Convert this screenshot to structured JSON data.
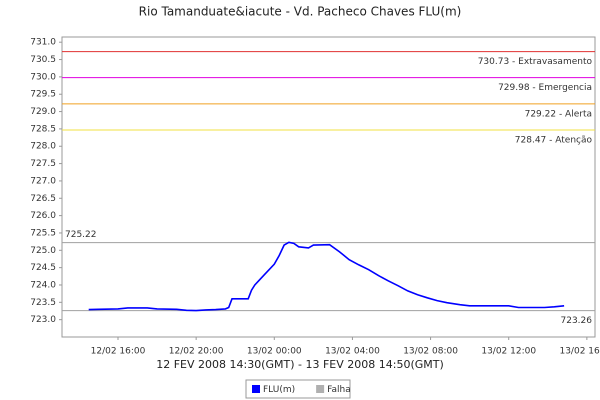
{
  "chart_data": {
    "type": "line",
    "title": "Rio Tamanduate&iacute - Vd. Pacheco Chaves FLU(m)",
    "xlabel": "12 FEV 2008 14:30(GMT) - 13 FEV 2008 14:50(GMT)",
    "x": [
      "12/02 14:30",
      "12/02 15:00",
      "12/02 16:00",
      "12/02 16:30",
      "12/02 17:30",
      "12/02 18:00",
      "12/02 19:00",
      "12/02 19:30",
      "12/02 20:00",
      "12/02 20:30",
      "12/02 21:00",
      "12/02 21:30",
      "12/02 21:40",
      "12/02 21:50",
      "12/02 22:40",
      "12/02 22:50",
      "12/02 23:00",
      "12/02 23:15",
      "12/02 23:30",
      "13/02 00:00",
      "13/02 00:15",
      "13/02 00:30",
      "13/02 00:45",
      "13/02 01:00",
      "13/02 01:15",
      "13/02 01:45",
      "13/02 02:00",
      "13/02 02:50",
      "13/02 03:20",
      "13/02 03:50",
      "13/02 04:20",
      "13/02 04:50",
      "13/02 05:20",
      "13/02 05:50",
      "13/02 06:20",
      "13/02 06:50",
      "13/02 07:20",
      "13/02 07:50",
      "13/02 08:20",
      "13/02 08:50",
      "13/02 09:30",
      "13/02 10:00",
      "13/02 12:00",
      "13/02 12:30",
      "13/02 13:50",
      "13/02 14:20",
      "13/02 14:50"
    ],
    "series": [
      {
        "name": "FLU(m)",
        "color": "#0000ff",
        "values": [
          723.29,
          723.3,
          723.31,
          723.34,
          723.34,
          723.31,
          723.3,
          723.27,
          723.26,
          723.28,
          723.29,
          723.31,
          723.35,
          723.6,
          723.6,
          723.85,
          724.0,
          724.15,
          724.3,
          724.6,
          724.85,
          725.15,
          725.23,
          725.2,
          725.1,
          725.07,
          725.15,
          725.16,
          724.96,
          724.73,
          724.58,
          724.44,
          724.27,
          724.12,
          723.98,
          723.83,
          723.72,
          723.63,
          723.55,
          723.49,
          723.43,
          723.4,
          723.4,
          723.35,
          723.35,
          723.37,
          723.4
        ]
      }
    ],
    "extra_legend": [
      {
        "name": "Falha",
        "color": "#b0b0b0"
      }
    ],
    "xlim": [
      "12/02 13:08",
      "13/02 16:25"
    ],
    "xticks": [
      "12/02 16:00",
      "12/02 20:00",
      "13/02 00:00",
      "13/02 04:00",
      "13/02 08:00",
      "13/02 12:00",
      "13/02 16:00"
    ],
    "ylim": [
      722.5,
      731.15
    ],
    "yticks": [
      {
        "value": 723,
        "label": "723.0"
      },
      723.5,
      {
        "value": 724,
        "label": "724.0"
      },
      724.5,
      {
        "value": 725,
        "label": "725.0"
      },
      725.5,
      {
        "value": 726,
        "label": "726.0"
      },
      726.5,
      {
        "value": 727,
        "label": "727.0"
      },
      727.5,
      {
        "value": 728,
        "label": "728.0"
      },
      728.5,
      {
        "value": 729,
        "label": "729.0"
      },
      729.5,
      {
        "value": 730,
        "label": "730.0"
      },
      730.5,
      {
        "value": 731,
        "label": "731.0"
      }
    ],
    "thresholds": [
      {
        "value": 730.73,
        "label": "730.73 - Extravasamento",
        "color": "#e03030"
      },
      {
        "value": 729.98,
        "label": "729.98 - Emergencia",
        "color": "#e000e0"
      },
      {
        "value": 729.22,
        "label": "729.22 - Alerta",
        "color": "#f0a020"
      },
      {
        "value": 728.47,
        "label": "728.47 - Atenção",
        "color": "#f0e040"
      }
    ],
    "reference_lines": [
      {
        "value": 725.22,
        "side": "left",
        "color": "#a0a0a0"
      },
      {
        "value": 723.26,
        "side": "right",
        "color": "#a0a0a0"
      }
    ]
  }
}
